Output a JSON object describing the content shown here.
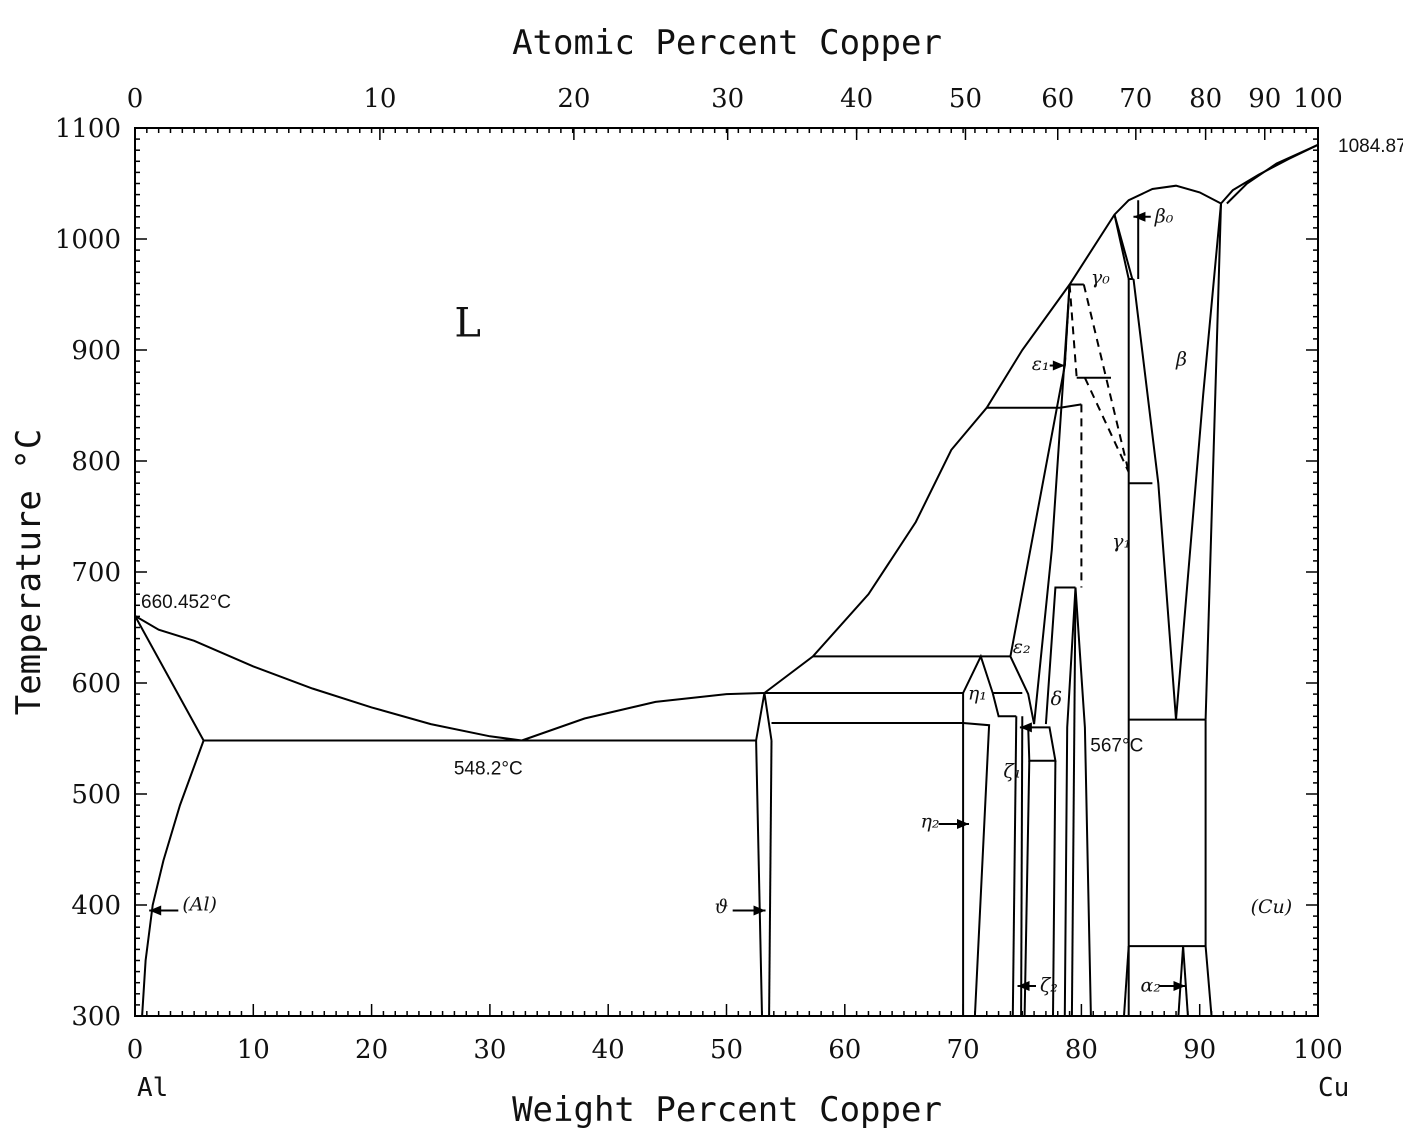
{
  "chart_data": {
    "type": "line",
    "title": "",
    "xlabel": "Weight Percent Copper",
    "x2label": "Atomic Percent Copper",
    "ylabel": "Temperature °C",
    "xlim": [
      0,
      100
    ],
    "ylim": [
      300,
      1100
    ],
    "grid": false,
    "x_ticks": [
      "0",
      "10",
      "20",
      "30",
      "40",
      "50",
      "60",
      "70",
      "80",
      "90",
      "100"
    ],
    "y_ticks": [
      "300",
      "400",
      "500",
      "600",
      "700",
      "800",
      "900",
      "1000",
      "1100"
    ],
    "x2_ticks": [
      {
        "at": 0,
        "label": "0"
      },
      {
        "at": 10,
        "label": "10"
      },
      {
        "at": 20,
        "label": "20"
      },
      {
        "at": 30,
        "label": "30"
      },
      {
        "at": 40,
        "label": "40"
      },
      {
        "at": 50,
        "label": "50"
      },
      {
        "at": 60,
        "label": "60"
      },
      {
        "at": 70,
        "label": "70"
      },
      {
        "at": 80,
        "label": "80"
      },
      {
        "at": 90,
        "label": "90"
      },
      {
        "at": 100,
        "label": "100"
      }
    ],
    "x2_ticks_wt": [
      0,
      20.7,
      37.1,
      50.1,
      61.0,
      70.2,
      78.0,
      84.6,
      90.5,
      95.5,
      100
    ],
    "end_labels": {
      "left": "Al",
      "right": "Cu"
    },
    "annotations": [
      {
        "text": "660.452°C",
        "x": 0,
        "y": 660.452
      },
      {
        "text": "548.2°C",
        "x": 32.7,
        "y": 548.2
      },
      {
        "text": "567°C",
        "x": 86.5,
        "y": 567
      },
      {
        "text": "1084.87°C",
        "x": 100,
        "y": 1084.87
      }
    ],
    "phase_labels": [
      {
        "text": "L",
        "x": 27,
        "y": 912,
        "big": true
      },
      {
        "text": "(Al)",
        "x": 4.0,
        "y": 395,
        "arrow_to": [
          1.2,
          395
        ]
      },
      {
        "text": "ϑ",
        "x": 49,
        "y": 393,
        "arrow_to": [
          53.3,
          395
        ]
      },
      {
        "text": "η₁",
        "x": 70.4,
        "y": 585
      },
      {
        "text": "η₂",
        "x": 66.4,
        "y": 470,
        "arrow_to": [
          70.5,
          473
        ]
      },
      {
        "text": "ζ₁",
        "x": 73.4,
        "y": 515,
        "arrow_to": [
          74.8,
          560
        ]
      },
      {
        "text": "ζ₂",
        "x": 76.5,
        "y": 322,
        "arrow_to": [
          74.6,
          327
        ]
      },
      {
        "text": "ε₁",
        "x": 75.8,
        "y": 882,
        "arrow_to": [
          78.6,
          886
        ]
      },
      {
        "text": "ε₂",
        "x": 74.2,
        "y": 627
      },
      {
        "text": "δ",
        "x": 77.4,
        "y": 580
      },
      {
        "text": "γ₀",
        "x": 80.8,
        "y": 960
      },
      {
        "text": "γ₁",
        "x": 82.6,
        "y": 722
      },
      {
        "text": "β",
        "x": 88.0,
        "y": 886
      },
      {
        "text": "β₀",
        "x": 86.2,
        "y": 1015,
        "arrow_to": [
          84.4,
          1020
        ]
      },
      {
        "text": "α₂",
        "x": 85.0,
        "y": 322,
        "arrow_to": [
          88.8,
          327
        ]
      },
      {
        "text": "(Cu)",
        "x": 94.3,
        "y": 393
      }
    ],
    "series": [
      {
        "style": "solid",
        "points": [
          [
            0,
            660.452
          ],
          [
            2,
            648
          ],
          [
            5,
            638
          ],
          [
            10,
            615
          ],
          [
            15,
            595
          ],
          [
            20,
            578
          ],
          [
            25,
            563
          ],
          [
            30,
            552
          ],
          [
            32.7,
            548.2
          ]
        ]
      },
      {
        "style": "solid",
        "points": [
          [
            0,
            660.452
          ],
          [
            5.8,
            548.2
          ]
        ]
      },
      {
        "style": "solid",
        "points": [
          [
            5.8,
            548.2
          ],
          [
            3.8,
            490
          ],
          [
            2.4,
            440
          ],
          [
            1.5,
            400
          ],
          [
            0.9,
            350
          ],
          [
            0.6,
            300
          ]
        ]
      },
      {
        "style": "solid",
        "points": [
          [
            5.8,
            548.2
          ],
          [
            52.5,
            548.2
          ]
        ]
      },
      {
        "style": "solid",
        "points": [
          [
            32.7,
            548.2
          ],
          [
            38,
            568
          ],
          [
            44,
            583
          ],
          [
            50,
            590
          ],
          [
            53.2,
            591
          ]
        ]
      },
      {
        "style": "solid",
        "points": [
          [
            52.5,
            548.2
          ],
          [
            53.2,
            591
          ],
          [
            53.8,
            548.2
          ]
        ]
      },
      {
        "style": "solid",
        "points": [
          [
            52.5,
            548.2
          ],
          [
            53.0,
            300
          ]
        ]
      },
      {
        "style": "solid",
        "points": [
          [
            53.8,
            548.2
          ],
          [
            53.6,
            300
          ]
        ]
      },
      {
        "style": "solid",
        "points": [
          [
            53.2,
            591
          ],
          [
            70,
            591
          ]
        ]
      },
      {
        "style": "solid",
        "points": [
          [
            53.8,
            564
          ],
          [
            70,
            564
          ]
        ]
      },
      {
        "style": "solid",
        "points": [
          [
            53.2,
            591
          ],
          [
            57.3,
            624
          ],
          [
            62,
            680
          ],
          [
            66,
            745
          ],
          [
            69,
            810
          ],
          [
            72,
            848
          ],
          [
            75,
            900
          ],
          [
            79,
            959
          ],
          [
            82.8,
            1022
          ],
          [
            84,
            1035
          ],
          [
            86,
            1045
          ],
          [
            88,
            1048
          ],
          [
            90,
            1042
          ],
          [
            91.8,
            1032
          ]
        ]
      },
      {
        "style": "solid",
        "points": [
          [
            92.3,
            1032
          ],
          [
            94,
            1050
          ],
          [
            96.5,
            1068
          ],
          [
            100,
            1084.87
          ]
        ]
      },
      {
        "style": "solid",
        "points": [
          [
            91.8,
            1032
          ],
          [
            92.8,
            1044
          ],
          [
            95,
            1058
          ],
          [
            97.5,
            1072
          ],
          [
            100,
            1084.87
          ]
        ]
      },
      {
        "style": "solid",
        "points": [
          [
            57.3,
            624
          ],
          [
            74,
            624
          ]
        ]
      },
      {
        "style": "solid",
        "points": [
          [
            72,
            848
          ],
          [
            78.2,
            848
          ]
        ]
      },
      {
        "style": "solid",
        "points": [
          [
            78.2,
            848
          ],
          [
            80,
            851
          ]
        ]
      },
      {
        "style": "solid",
        "points": [
          [
            79,
            959
          ],
          [
            80.2,
            959
          ]
        ]
      },
      {
        "style": "solid",
        "points": [
          [
            79.6,
            875
          ],
          [
            82.5,
            875
          ]
        ]
      },
      {
        "style": "solid",
        "points": [
          [
            82.8,
            1022
          ],
          [
            84,
            964
          ],
          [
            84.4,
            964
          ]
        ]
      },
      {
        "style": "solid",
        "points": [
          [
            82.8,
            1022
          ],
          [
            84.3,
            964
          ]
        ]
      },
      {
        "style": "solid",
        "points": [
          [
            84.8,
            1035
          ],
          [
            84.8,
            964
          ]
        ]
      },
      {
        "style": "solid",
        "points": [
          [
            84,
            964
          ],
          [
            84,
            300
          ]
        ]
      },
      {
        "style": "solid",
        "points": [
          [
            84,
            780
          ],
          [
            86,
            780
          ]
        ]
      },
      {
        "style": "solid",
        "points": [
          [
            84.4,
            964
          ],
          [
            86.5,
            780
          ],
          [
            88,
            567
          ]
        ]
      },
      {
        "style": "solid",
        "points": [
          [
            88,
            567
          ],
          [
            90.3,
            860
          ],
          [
            91.8,
            1032
          ]
        ]
      },
      {
        "style": "solid",
        "points": [
          [
            91.8,
            1032
          ],
          [
            90.5,
            567
          ]
        ]
      },
      {
        "style": "solid",
        "points": [
          [
            84,
            567
          ],
          [
            90.5,
            567
          ]
        ]
      },
      {
        "style": "solid",
        "points": [
          [
            90.5,
            567
          ],
          [
            90.5,
            363
          ]
        ]
      },
      {
        "style": "solid",
        "points": [
          [
            84,
            363
          ],
          [
            90.5,
            363
          ]
        ]
      },
      {
        "style": "solid",
        "points": [
          [
            84,
            363
          ],
          [
            83.6,
            300
          ]
        ]
      },
      {
        "style": "solid",
        "points": [
          [
            90.5,
            363
          ],
          [
            91.0,
            300
          ]
        ]
      },
      {
        "style": "solid",
        "points": [
          [
            88.6,
            363
          ],
          [
            88.2,
            300
          ]
        ]
      },
      {
        "style": "solid",
        "points": [
          [
            88.6,
            363
          ],
          [
            89.0,
            300
          ]
        ]
      },
      {
        "style": "solid",
        "points": [
          [
            70,
            591
          ],
          [
            70,
            300
          ]
        ]
      },
      {
        "style": "solid",
        "points": [
          [
            70,
            591
          ],
          [
            71.5,
            624
          ],
          [
            72.5,
            591
          ]
        ]
      },
      {
        "style": "solid",
        "points": [
          [
            70,
            564
          ],
          [
            72.2,
            562
          ],
          [
            71,
            300
          ]
        ]
      },
      {
        "style": "solid",
        "points": [
          [
            72.5,
            591
          ],
          [
            75,
            591
          ]
        ]
      },
      {
        "style": "solid",
        "points": [
          [
            72.5,
            591
          ],
          [
            73,
            570
          ],
          [
            74.5,
            570
          ]
        ]
      },
      {
        "style": "solid",
        "points": [
          [
            74,
            624
          ],
          [
            75.5,
            590
          ],
          [
            76,
            563
          ]
        ]
      },
      {
        "style": "solid",
        "points": [
          [
            74,
            624
          ],
          [
            78.6,
            886
          ],
          [
            79,
            959
          ]
        ]
      },
      {
        "style": "solid",
        "points": [
          [
            76,
            563
          ],
          [
            77.5,
            720
          ],
          [
            79,
            959
          ]
        ]
      },
      {
        "style": "solid",
        "points": [
          [
            74.5,
            570
          ],
          [
            74.2,
            300
          ]
        ]
      },
      {
        "style": "solid",
        "points": [
          [
            75,
            570
          ],
          [
            74.9,
            300
          ]
        ]
      },
      {
        "style": "solid",
        "points": [
          [
            75.5,
            560
          ],
          [
            77.3,
            560
          ],
          [
            77.8,
            530
          ],
          [
            75.6,
            530
          ],
          [
            75.5,
            560
          ]
        ]
      },
      {
        "style": "solid",
        "points": [
          [
            75.6,
            530
          ],
          [
            75.2,
            300
          ]
        ]
      },
      {
        "style": "solid",
        "points": [
          [
            77.8,
            530
          ],
          [
            77.6,
            300
          ]
        ]
      },
      {
        "style": "solid",
        "points": [
          [
            77,
            563
          ],
          [
            77.8,
            686
          ],
          [
            79.5,
            686
          ]
        ]
      },
      {
        "style": "solid",
        "points": [
          [
            79.5,
            686
          ],
          [
            78.8,
            560
          ],
          [
            78.6,
            300
          ]
        ]
      },
      {
        "style": "solid",
        "points": [
          [
            79.5,
            686
          ],
          [
            80.3,
            560
          ],
          [
            80.8,
            300
          ]
        ]
      },
      {
        "style": "solid",
        "points": [
          [
            79.5,
            686
          ],
          [
            79.2,
            300
          ]
        ]
      },
      {
        "style": "dashed",
        "points": [
          [
            78.6,
            886
          ],
          [
            79,
            959
          ]
        ]
      },
      {
        "style": "dashed",
        "points": [
          [
            79,
            959
          ],
          [
            79.6,
            875
          ]
        ]
      },
      {
        "style": "dashed",
        "points": [
          [
            80.2,
            959
          ],
          [
            84,
            790
          ]
        ]
      },
      {
        "style": "dashed",
        "points": [
          [
            80.3,
            875
          ],
          [
            84,
            790
          ]
        ]
      },
      {
        "style": "dashed",
        "points": [
          [
            80,
            851
          ],
          [
            80,
            686
          ]
        ]
      }
    ]
  }
}
